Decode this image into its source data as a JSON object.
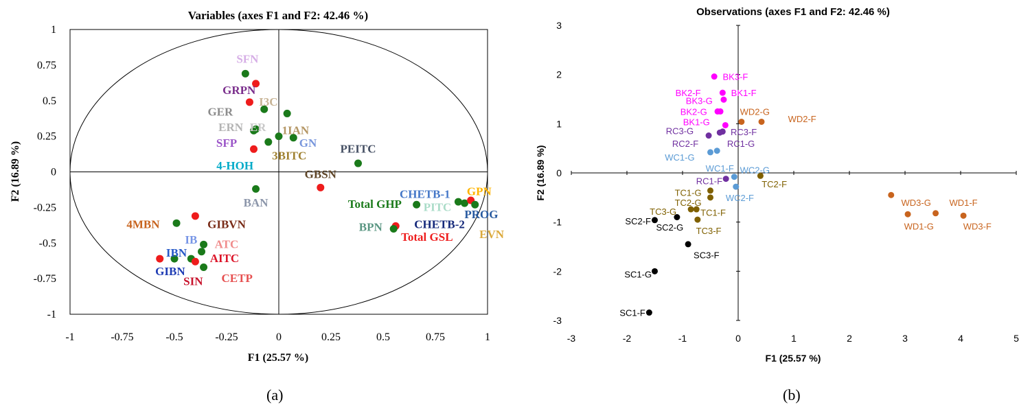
{
  "panel_a_label": "(a)",
  "panel_b_label": "(b)",
  "chart_data": [
    {
      "type": "scatter",
      "title": "Variables (axes F1 and F2: 42.46 %)",
      "xlabel": "F1 (25.57 %)",
      "ylabel": "F2 (16.89 %)",
      "xlim": [
        -1,
        1
      ],
      "ylim": [
        -1,
        1
      ],
      "xticks": [
        "-1",
        "-0.75",
        "-0.5",
        "-0.25",
        "0",
        "0.25",
        "0.5",
        "0.75",
        "1"
      ],
      "yticks": [
        "-1",
        "-0.75",
        "-0.5",
        "-0.25",
        "0",
        "0.25",
        "0.5",
        "0.75",
        "1"
      ],
      "correlation_circle": true,
      "points": [
        {
          "x": -0.16,
          "y": 0.69,
          "color": "#1a7a1a"
        },
        {
          "x": -0.11,
          "y": 0.62,
          "color": "#ee1c1c"
        },
        {
          "x": -0.14,
          "y": 0.49,
          "color": "#ee1c1c"
        },
        {
          "x": -0.07,
          "y": 0.44,
          "color": "#1a7a1a"
        },
        {
          "x": 0.04,
          "y": 0.41,
          "color": "#1a7a1a"
        },
        {
          "x": -0.11,
          "y": 0.3,
          "color": "#1a7a1a"
        },
        {
          "x": -0.12,
          "y": 0.29,
          "color": "#1a7a1a"
        },
        {
          "x": 0.0,
          "y": 0.25,
          "color": "#1a7a1a"
        },
        {
          "x": 0.07,
          "y": 0.24,
          "color": "#1a7a1a"
        },
        {
          "x": -0.05,
          "y": 0.21,
          "color": "#1a7a1a"
        },
        {
          "x": -0.12,
          "y": 0.16,
          "color": "#ee1c1c"
        },
        {
          "x": 0.38,
          "y": 0.06,
          "color": "#1a7a1a"
        },
        {
          "x": -0.11,
          "y": -0.12,
          "color": "#1a7a1a"
        },
        {
          "x": 0.2,
          "y": -0.11,
          "color": "#ee1c1c"
        },
        {
          "x": 0.86,
          "y": -0.21,
          "color": "#1a7a1a"
        },
        {
          "x": 0.89,
          "y": -0.22,
          "color": "#1a7a1a"
        },
        {
          "x": 0.92,
          "y": -0.2,
          "color": "#ee1c1c"
        },
        {
          "x": 0.94,
          "y": -0.23,
          "color": "#1a7a1a"
        },
        {
          "x": 0.66,
          "y": -0.23,
          "color": "#1a7a1a"
        },
        {
          "x": 0.56,
          "y": -0.38,
          "color": "#ee1c1c"
        },
        {
          "x": 0.55,
          "y": -0.4,
          "color": "#1a7a1a"
        },
        {
          "x": -0.4,
          "y": -0.31,
          "color": "#ee1c1c"
        },
        {
          "x": -0.49,
          "y": -0.36,
          "color": "#1a7a1a"
        },
        {
          "x": -0.36,
          "y": -0.51,
          "color": "#1a7a1a"
        },
        {
          "x": -0.37,
          "y": -0.56,
          "color": "#1a7a1a"
        },
        {
          "x": -0.42,
          "y": -0.61,
          "color": "#1a7a1a"
        },
        {
          "x": -0.5,
          "y": -0.61,
          "color": "#1a7a1a"
        },
        {
          "x": -0.57,
          "y": -0.61,
          "color": "#ee1c1c"
        },
        {
          "x": -0.4,
          "y": -0.63,
          "color": "#ee1c1c"
        },
        {
          "x": -0.36,
          "y": -0.67,
          "color": "#1a7a1a"
        }
      ],
      "labels": [
        {
          "text": "SFN",
          "x": -0.15,
          "y": 0.79,
          "color": "#d6aee6",
          "anchor": "middle"
        },
        {
          "text": "GRPN",
          "x": -0.19,
          "y": 0.57,
          "color": "#7a2e8c",
          "anchor": "middle"
        },
        {
          "text": "I3C",
          "x": -0.05,
          "y": 0.49,
          "color": "#c8b496",
          "anchor": "middle"
        },
        {
          "text": "GER",
          "x": -0.28,
          "y": 0.42,
          "color": "#8c8c8c",
          "anchor": "middle"
        },
        {
          "text": "ERN",
          "x": -0.23,
          "y": 0.31,
          "color": "#b4b4b4",
          "anchor": "middle"
        },
        {
          "text": "ER",
          "x": -0.1,
          "y": 0.31,
          "color": "#c8c8c8",
          "anchor": "middle"
        },
        {
          "text": "1IAN",
          "x": 0.08,
          "y": 0.29,
          "color": "#b49664",
          "anchor": "middle"
        },
        {
          "text": "SFP",
          "x": -0.25,
          "y": 0.2,
          "color": "#9b55c8",
          "anchor": "middle"
        },
        {
          "text": "GN",
          "x": 0.14,
          "y": 0.2,
          "color": "#7896dc",
          "anchor": "middle"
        },
        {
          "text": "3BITC",
          "x": 0.05,
          "y": 0.11,
          "color": "#a08232",
          "anchor": "middle"
        },
        {
          "text": "PEITC",
          "x": 0.38,
          "y": 0.16,
          "color": "#465064",
          "anchor": "middle"
        },
        {
          "text": "4-HOH",
          "x": -0.21,
          "y": 0.04,
          "color": "#00aac8",
          "anchor": "middle"
        },
        {
          "text": "GBSN",
          "x": 0.2,
          "y": -0.02,
          "color": "#5f4628",
          "anchor": "middle"
        },
        {
          "text": "BAN",
          "x": -0.11,
          "y": -0.22,
          "color": "#8c96aa",
          "anchor": "middle"
        },
        {
          "text": "CHETB-1",
          "x": 0.7,
          "y": -0.16,
          "color": "#4678c8",
          "anchor": "middle"
        },
        {
          "text": "GPN",
          "x": 0.96,
          "y": -0.14,
          "color": "#ffb400",
          "anchor": "middle"
        },
        {
          "text": "Total GHP",
          "x": 0.46,
          "y": -0.23,
          "color": "#1a7a1a",
          "anchor": "middle"
        },
        {
          "text": "PITC",
          "x": 0.76,
          "y": -0.25,
          "color": "#aadcc8",
          "anchor": "middle"
        },
        {
          "text": "PROG",
          "x": 0.97,
          "y": -0.3,
          "color": "#285aa0",
          "anchor": "middle"
        },
        {
          "text": "BPN",
          "x": 0.44,
          "y": -0.39,
          "color": "#5a9682",
          "anchor": "middle"
        },
        {
          "text": "CHETB-2",
          "x": 0.77,
          "y": -0.37,
          "color": "#14287a",
          "anchor": "middle"
        },
        {
          "text": "EVN",
          "x": 1.02,
          "y": -0.44,
          "color": "#dcaa3c",
          "anchor": "middle"
        },
        {
          "text": "Total GSL",
          "x": 0.71,
          "y": -0.46,
          "color": "#ee1c1c",
          "anchor": "middle"
        },
        {
          "text": "4MBN",
          "x": -0.65,
          "y": -0.37,
          "color": "#c8641e",
          "anchor": "middle"
        },
        {
          "text": "GIBVN",
          "x": -0.25,
          "y": -0.37,
          "color": "#7a2d19",
          "anchor": "middle"
        },
        {
          "text": "IB",
          "x": -0.42,
          "y": -0.48,
          "color": "#7896e6",
          "anchor": "middle"
        },
        {
          "text": "ATC",
          "x": -0.25,
          "y": -0.51,
          "color": "#f08c8c",
          "anchor": "middle"
        },
        {
          "text": "IBN",
          "x": -0.49,
          "y": -0.57,
          "color": "#285ac8",
          "anchor": "middle"
        },
        {
          "text": "AITC",
          "x": -0.26,
          "y": -0.61,
          "color": "#dc1428",
          "anchor": "middle"
        },
        {
          "text": "GIBN",
          "x": -0.52,
          "y": -0.7,
          "color": "#1e3cb4",
          "anchor": "middle"
        },
        {
          "text": "CETP",
          "x": -0.2,
          "y": -0.75,
          "color": "#e65050",
          "anchor": "middle"
        },
        {
          "text": "SIN",
          "x": -0.41,
          "y": -0.77,
          "color": "#c8142d",
          "anchor": "middle"
        }
      ]
    },
    {
      "type": "scatter",
      "title": "Observations (axes F1 and F2: 42.46 %)",
      "xlabel": "F1 (25.57 %)",
      "ylabel": "F2 (16.89 %)",
      "xlim": [
        -3,
        5
      ],
      "ylim": [
        -3,
        3
      ],
      "xticks": [
        "-3",
        "-2",
        "-1",
        "0",
        "1",
        "2",
        "3",
        "4",
        "5"
      ],
      "yticks": [
        "-3",
        "-2",
        "-1",
        "0",
        "1",
        "2",
        "3"
      ],
      "points": [
        {
          "name": "BK3-F",
          "x": -0.43,
          "y": 1.96,
          "color": "#ff00ff"
        },
        {
          "name": "BK1-F",
          "x": -0.28,
          "y": 1.63,
          "color": "#ff00ff"
        },
        {
          "name": "BK3-G",
          "x": -0.26,
          "y": 1.49,
          "color": "#ff00ff"
        },
        {
          "name": "BK2-G",
          "x": -0.32,
          "y": 1.25,
          "color": "#ff00ff"
        },
        {
          "name": "BK2-G2",
          "x": -0.37,
          "y": 1.25,
          "color": "#ff00ff"
        },
        {
          "name": "BK1-G",
          "x": -0.23,
          "y": 0.97,
          "color": "#ff00ff"
        },
        {
          "name": "WD2-G",
          "x": 0.06,
          "y": 1.04,
          "color": "#c8641e"
        },
        {
          "name": "WD2-F",
          "x": 0.42,
          "y": 1.04,
          "color": "#c8641e"
        },
        {
          "name": "RC3-F",
          "x": -0.28,
          "y": 0.84,
          "color": "#7030a0"
        },
        {
          "name": "RC3-F2",
          "x": -0.33,
          "y": 0.82,
          "color": "#7030a0"
        },
        {
          "name": "RC3-G",
          "x": -0.53,
          "y": 0.76,
          "color": "#7030a0"
        },
        {
          "name": "RC1-F",
          "x": -0.22,
          "y": -0.12,
          "color": "#7030a0"
        },
        {
          "name": "RC1-G",
          "x": -0.38,
          "y": 0.45,
          "color": "#5b9bd5"
        },
        {
          "name": "WC1-G",
          "x": -0.5,
          "y": 0.42,
          "color": "#5b9bd5"
        },
        {
          "name": "WC2-G",
          "x": -0.07,
          "y": -0.08,
          "color": "#5b9bd5"
        },
        {
          "name": "WC2-F",
          "x": -0.04,
          "y": -0.28,
          "color": "#5b9bd5"
        },
        {
          "name": "TC2-F",
          "x": 0.4,
          "y": -0.06,
          "color": "#7f6000"
        },
        {
          "name": "TC1-G",
          "x": -0.5,
          "y": -0.36,
          "color": "#7f6000"
        },
        {
          "name": "TC2-G",
          "x": -0.5,
          "y": -0.5,
          "color": "#7f6000"
        },
        {
          "name": "TC1-F",
          "x": -0.75,
          "y": -0.74,
          "color": "#7f6000"
        },
        {
          "name": "TC3-G",
          "x": -0.85,
          "y": -0.74,
          "color": "#7f6000"
        },
        {
          "name": "TC3-F",
          "x": -0.73,
          "y": -0.95,
          "color": "#7f6000"
        },
        {
          "name": "SC2-F",
          "x": -1.5,
          "y": -0.96,
          "color": "#000000"
        },
        {
          "name": "SC2-G",
          "x": -1.1,
          "y": -0.9,
          "color": "#000000"
        },
        {
          "name": "SC3-F",
          "x": -0.9,
          "y": -1.45,
          "color": "#000000"
        },
        {
          "name": "SC1-G",
          "x": -1.5,
          "y": -2.0,
          "color": "#000000"
        },
        {
          "name": "SC1-F",
          "x": -1.6,
          "y": -2.84,
          "color": "#000000"
        },
        {
          "name": "WD3-G",
          "x": 2.75,
          "y": -0.45,
          "color": "#c8641e"
        },
        {
          "name": "WD1-G",
          "x": 3.05,
          "y": -0.84,
          "color": "#c8641e"
        },
        {
          "name": "WD1-F",
          "x": 3.55,
          "y": -0.82,
          "color": "#c8641e"
        },
        {
          "name": "WD3-F",
          "x": 4.05,
          "y": -0.87,
          "color": "#c8641e"
        }
      ],
      "labels": [
        {
          "text": "BK3-F",
          "x": -0.05,
          "y": 1.96,
          "color": "#ff00ff",
          "anchor": "middle"
        },
        {
          "text": "BK2-F",
          "x": -0.9,
          "y": 1.63,
          "color": "#ff00ff",
          "anchor": "middle"
        },
        {
          "text": "BK1-F",
          "x": 0.1,
          "y": 1.63,
          "color": "#ff00ff",
          "anchor": "middle"
        },
        {
          "text": "BK3-G",
          "x": -0.7,
          "y": 1.47,
          "color": "#ff00ff",
          "anchor": "middle"
        },
        {
          "text": "BK2-G",
          "x": -0.8,
          "y": 1.25,
          "color": "#ff00ff",
          "anchor": "middle"
        },
        {
          "text": "WD2-G",
          "x": 0.3,
          "y": 1.25,
          "color": "#c8641e",
          "anchor": "middle"
        },
        {
          "text": "WD2-F",
          "x": 1.15,
          "y": 1.1,
          "color": "#c8641e",
          "anchor": "middle"
        },
        {
          "text": "BK1-G",
          "x": -0.75,
          "y": 1.04,
          "color": "#ff00ff",
          "anchor": "middle"
        },
        {
          "text": "RC3-G",
          "x": -1.05,
          "y": 0.86,
          "color": "#7030a0",
          "anchor": "middle"
        },
        {
          "text": "RC3-F",
          "x": 0.1,
          "y": 0.84,
          "color": "#7030a0",
          "anchor": "middle"
        },
        {
          "text": "RC2-F",
          "x": -0.95,
          "y": 0.6,
          "color": "#7030a0",
          "anchor": "middle"
        },
        {
          "text": "RC1-G",
          "x": 0.05,
          "y": 0.6,
          "color": "#7030a0",
          "anchor": "middle"
        },
        {
          "text": "WC1-G",
          "x": -1.05,
          "y": 0.32,
          "color": "#5b9bd5",
          "anchor": "middle"
        },
        {
          "text": "WC1-F",
          "x": -0.33,
          "y": 0.1,
          "color": "#5b9bd5",
          "anchor": "middle"
        },
        {
          "text": "WC2-G",
          "x": 0.3,
          "y": 0.06,
          "color": "#5b9bd5",
          "anchor": "middle"
        },
        {
          "text": "RC1-F",
          "x": -0.52,
          "y": -0.16,
          "color": "#7030a0",
          "anchor": "middle"
        },
        {
          "text": "TC2-F",
          "x": 0.65,
          "y": -0.22,
          "color": "#7f6000",
          "anchor": "middle"
        },
        {
          "text": "WC2-F",
          "x": 0.03,
          "y": -0.5,
          "color": "#5b9bd5",
          "anchor": "middle"
        },
        {
          "text": "TC1-G",
          "x": -0.9,
          "y": -0.4,
          "color": "#7f6000",
          "anchor": "middle"
        },
        {
          "text": "TC2-G",
          "x": -0.9,
          "y": -0.6,
          "color": "#7f6000",
          "anchor": "middle"
        },
        {
          "text": "TC3-G",
          "x": -1.35,
          "y": -0.78,
          "color": "#7f6000",
          "anchor": "middle"
        },
        {
          "text": "TC1-F",
          "x": -0.45,
          "y": -0.8,
          "color": "#7f6000",
          "anchor": "middle"
        },
        {
          "text": "SC2-F",
          "x": -1.8,
          "y": -0.98,
          "color": "#000000",
          "anchor": "middle"
        },
        {
          "text": "SC2-G",
          "x": -1.23,
          "y": -1.1,
          "color": "#000000",
          "anchor": "middle"
        },
        {
          "text": "TC3-F",
          "x": -0.53,
          "y": -1.17,
          "color": "#7f6000",
          "anchor": "middle"
        },
        {
          "text": "SC3-F",
          "x": -0.57,
          "y": -1.67,
          "color": "#000000",
          "anchor": "middle"
        },
        {
          "text": "SC1-G",
          "x": -1.8,
          "y": -2.06,
          "color": "#000000",
          "anchor": "middle"
        },
        {
          "text": "SC1-F",
          "x": -1.9,
          "y": -2.84,
          "color": "#000000",
          "anchor": "middle"
        },
        {
          "text": "WD3-G",
          "x": 3.2,
          "y": -0.6,
          "color": "#c8641e",
          "anchor": "middle"
        },
        {
          "text": "WD1-F",
          "x": 4.05,
          "y": -0.6,
          "color": "#c8641e",
          "anchor": "middle"
        },
        {
          "text": "WD1-G",
          "x": 3.25,
          "y": -1.08,
          "color": "#c8641e",
          "anchor": "middle"
        },
        {
          "text": "WD3-F",
          "x": 4.3,
          "y": -1.08,
          "color": "#c8641e",
          "anchor": "middle"
        }
      ]
    }
  ]
}
